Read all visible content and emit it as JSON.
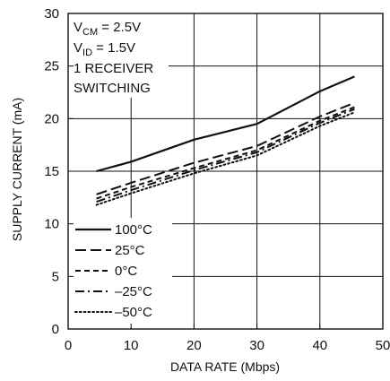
{
  "chart_data": {
    "type": "line",
    "xlabel": "DATA RATE (Mbps)",
    "ylabel": "SUPPLY CURRENT (mA)",
    "xlim": [
      0,
      50
    ],
    "ylim": [
      0,
      30
    ],
    "xticks": [
      0,
      10,
      20,
      30,
      40,
      50
    ],
    "yticks": [
      0,
      5,
      10,
      15,
      20,
      25,
      30
    ],
    "x_tick_labels": [
      "0",
      "10",
      "20",
      "30",
      "40",
      "50"
    ],
    "y_tick_labels": [
      "0",
      "5",
      "10",
      "15",
      "20",
      "25",
      "30"
    ],
    "grid": true,
    "annotation": {
      "vcm_prefix": "V",
      "vcm_sub": "CM",
      "vcm_suffix": " = 2.5V",
      "vid_prefix": "V",
      "vid_sub": "ID",
      "vid_suffix": " = 1.5V",
      "line3": "1 RECEIVER",
      "line4": "SWITCHING"
    },
    "legend_position": "lower-left",
    "series": [
      {
        "name": "100°C",
        "style": "solid",
        "color": "#111111",
        "x": [
          4.5,
          10,
          20,
          30,
          40,
          45.5
        ],
        "y": [
          15.0,
          15.9,
          18.0,
          19.5,
          22.6,
          24.0
        ]
      },
      {
        "name": "25°C",
        "style": "long-dash",
        "color": "#111111",
        "x": [
          4.5,
          10,
          20,
          30,
          40,
          45.5
        ],
        "y": [
          12.8,
          13.9,
          15.8,
          17.4,
          20.2,
          21.5
        ]
      },
      {
        "name": "0°C",
        "style": "short-dash",
        "color": "#111111",
        "x": [
          4.5,
          10,
          20,
          30,
          40,
          45.5
        ],
        "y": [
          12.4,
          13.5,
          15.3,
          17.0,
          19.8,
          21.1
        ]
      },
      {
        "name": "–25°C",
        "style": "dash-dot",
        "color": "#111111",
        "x": [
          4.5,
          10,
          20,
          30,
          40,
          45.5
        ],
        "y": [
          12.1,
          13.2,
          15.1,
          16.8,
          19.6,
          20.9
        ]
      },
      {
        "name": "–50°C",
        "style": "dotted",
        "color": "#111111",
        "x": [
          4.5,
          10,
          20,
          30,
          40,
          45.5
        ],
        "y": [
          11.8,
          12.9,
          14.8,
          16.5,
          19.3,
          20.6
        ]
      }
    ]
  }
}
